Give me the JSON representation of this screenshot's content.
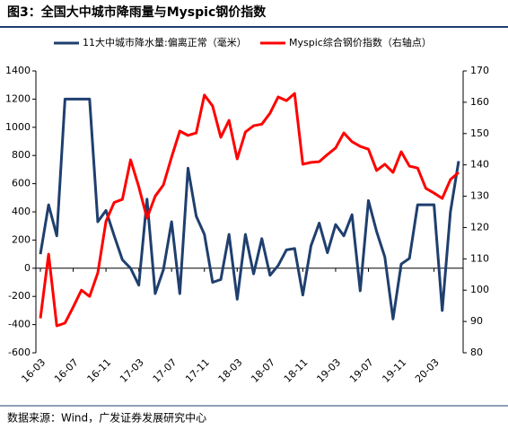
{
  "chart_data": {
    "type": "line",
    "title": "图3：全国大中城市降雨量与Myspic钢价指数",
    "source": "数据来源：Wind，广发证券发展研究中心",
    "categories": [
      "16-03",
      null,
      null,
      null,
      "16-07",
      null,
      null,
      null,
      "16-11",
      null,
      null,
      null,
      "17-03",
      null,
      null,
      null,
      "17-07",
      null,
      null,
      null,
      "17-11",
      null,
      null,
      null,
      "18-03",
      null,
      null,
      null,
      "18-07",
      null,
      null,
      null,
      "18-11",
      null,
      null,
      null,
      "19-03",
      null,
      null,
      null,
      "19-07",
      null,
      null,
      null,
      "19-11",
      null,
      null,
      null,
      "20-03",
      null,
      null,
      null
    ],
    "series": [
      {
        "name": "11大中城市降水量:偏离正常（毫米）",
        "color": "#1f3f6e",
        "axis": "y",
        "values": [
          100,
          450,
          230,
          1200,
          1200,
          1200,
          1200,
          330,
          410,
          230,
          60,
          0,
          -120,
          490,
          -180,
          -10,
          330,
          -180,
          710,
          370,
          240,
          -100,
          -80,
          240,
          -220,
          240,
          -40,
          210,
          -50,
          20,
          130,
          140,
          -190,
          160,
          320,
          110,
          310,
          230,
          380,
          -160,
          480,
          260,
          80,
          -360,
          30,
          70,
          450,
          450,
          450,
          -300,
          400,
          760
        ]
      },
      {
        "name": "Myspic综合钢价指数（右轴点）",
        "color": "#ff0000",
        "axis": "y2",
        "values": [
          91,
          111.5,
          88.6,
          89.5,
          94.6,
          100,
          98,
          105.5,
          122,
          128,
          129,
          141.6,
          133,
          123,
          130,
          133.6,
          142.5,
          150.8,
          149.4,
          150.2,
          162.3,
          158.8,
          148.8,
          154.2,
          141.9,
          150.5,
          152.5,
          153,
          156.5,
          161.7,
          160.5,
          162.8,
          140.2,
          140.8,
          141,
          143.3,
          145.4,
          150.2,
          147.4,
          145.9,
          145,
          138.2,
          140.2,
          137.6,
          144.2,
          139.6,
          139,
          132.5,
          131,
          129.3,
          135.3,
          137.6
        ]
      }
    ],
    "ylim": [
      -600,
      1400
    ],
    "yticks": [
      -600,
      -400,
      -200,
      0,
      200,
      400,
      600,
      800,
      1000,
      1200,
      1400
    ],
    "y2lim": [
      80,
      170
    ],
    "y2ticks": [
      80,
      90,
      100,
      110,
      120,
      130,
      140,
      150,
      160,
      170
    ],
    "grid": false,
    "legend": "top"
  }
}
